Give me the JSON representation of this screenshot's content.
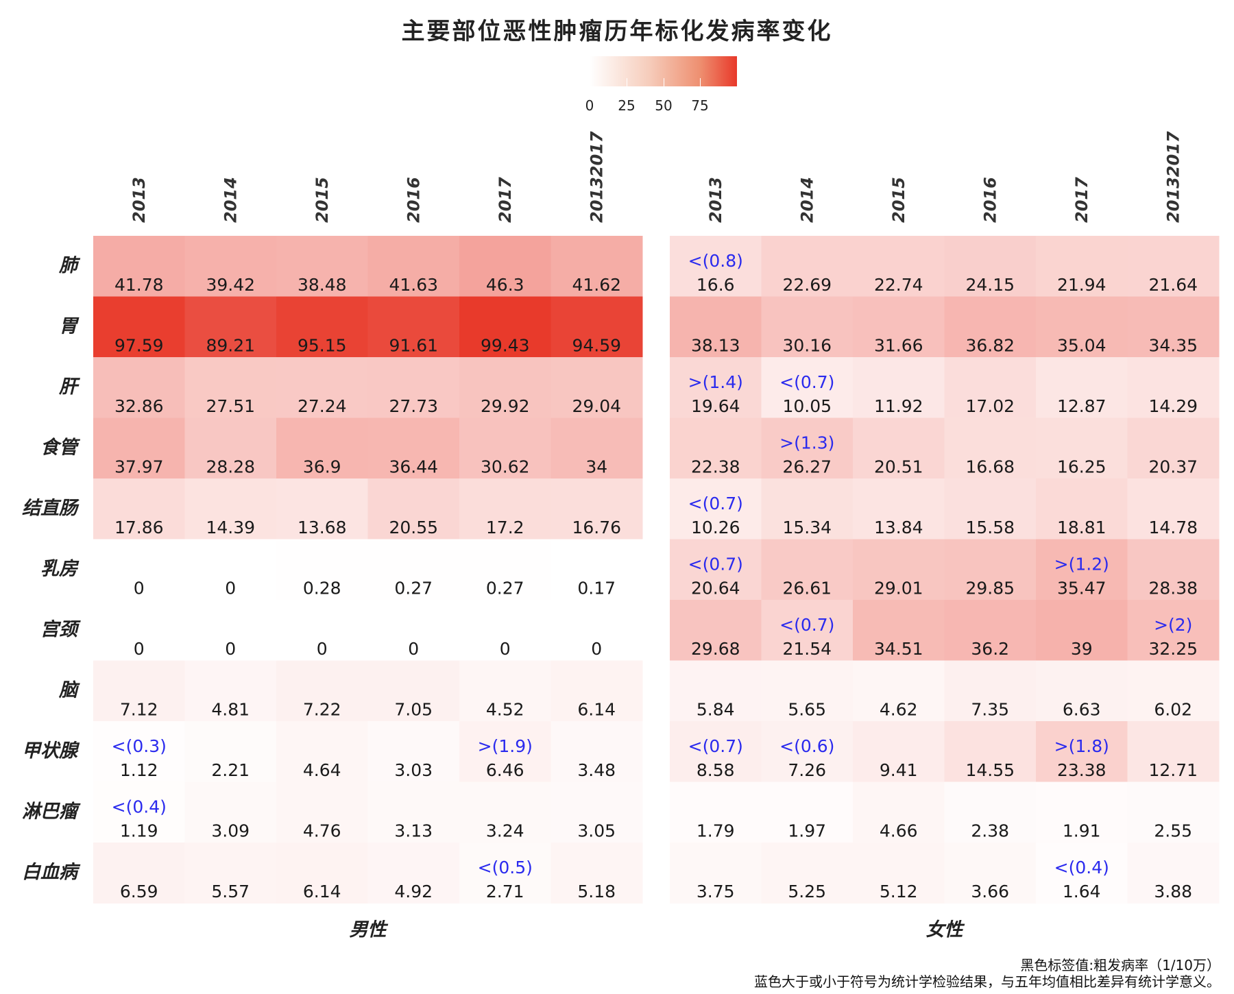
{
  "chart_data": {
    "type": "heatmap",
    "title": "主要部位恶性肿瘤历年标化发病率变化",
    "legend": {
      "ticks": [
        "0",
        "25",
        "50",
        "75"
      ],
      "range": [
        0,
        100
      ],
      "low_color": "#ffffff",
      "high_color": "#e8392a"
    },
    "columns": [
      "2013",
      "2014",
      "2015",
      "2016",
      "2017",
      "20132017"
    ],
    "rows": [
      "肺",
      "胃",
      "肝",
      "食管",
      "结直肠",
      "乳房",
      "宫颈",
      "脑",
      "甲状腺",
      "淋巴瘤",
      "白血病"
    ],
    "panels": [
      {
        "name": "男性",
        "values": [
          [
            "41.78",
            "39.42",
            "38.48",
            "41.63",
            "46.3",
            "41.62"
          ],
          [
            "97.59",
            "89.21",
            "95.15",
            "91.61",
            "99.43",
            "94.59"
          ],
          [
            "32.86",
            "27.51",
            "27.24",
            "27.73",
            "29.92",
            "29.04"
          ],
          [
            "37.97",
            "28.28",
            "36.9",
            "36.44",
            "30.62",
            "34"
          ],
          [
            "17.86",
            "14.39",
            "13.68",
            "20.55",
            "17.2",
            "16.76"
          ],
          [
            "0",
            "0",
            "0.28",
            "0.27",
            "0.27",
            "0.17"
          ],
          [
            "0",
            "0",
            "0",
            "0",
            "0",
            "0"
          ],
          [
            "7.12",
            "4.81",
            "7.22",
            "7.05",
            "4.52",
            "6.14"
          ],
          [
            "1.12",
            "2.21",
            "4.64",
            "3.03",
            "6.46",
            "3.48"
          ],
          [
            "1.19",
            "3.09",
            "4.76",
            "3.13",
            "3.24",
            "3.05"
          ],
          [
            "6.59",
            "5.57",
            "6.14",
            "4.92",
            "2.71",
            "5.18"
          ]
        ],
        "tests": [
          [
            "",
            "",
            "",
            "",
            "",
            ""
          ],
          [
            "",
            "",
            "",
            "",
            "",
            ""
          ],
          [
            "",
            "",
            "",
            "",
            "",
            ""
          ],
          [
            "",
            "",
            "",
            "",
            "",
            ""
          ],
          [
            "",
            "",
            "",
            "",
            "",
            ""
          ],
          [
            "",
            "",
            "",
            "",
            "",
            ""
          ],
          [
            "",
            "",
            "",
            "",
            "",
            ""
          ],
          [
            "",
            "",
            "",
            "",
            "",
            ""
          ],
          [
            "<(0.3)",
            "",
            "",
            "",
            ">(1.9)",
            ""
          ],
          [
            "<(0.4)",
            "",
            "",
            "",
            "",
            ""
          ],
          [
            "",
            "",
            "",
            "",
            "<(0.5)",
            ""
          ]
        ]
      },
      {
        "name": "女性",
        "values": [
          [
            "16.6",
            "22.69",
            "22.74",
            "24.15",
            "21.94",
            "21.64"
          ],
          [
            "38.13",
            "30.16",
            "31.66",
            "36.82",
            "35.04",
            "34.35"
          ],
          [
            "19.64",
            "10.05",
            "11.92",
            "17.02",
            "12.87",
            "14.29"
          ],
          [
            "22.38",
            "26.27",
            "20.51",
            "16.68",
            "16.25",
            "20.37"
          ],
          [
            "10.26",
            "15.34",
            "13.84",
            "15.58",
            "18.81",
            "14.78"
          ],
          [
            "20.64",
            "26.61",
            "29.01",
            "29.85",
            "35.47",
            "28.38"
          ],
          [
            "29.68",
            "21.54",
            "34.51",
            "36.2",
            "39",
            "32.25"
          ],
          [
            "5.84",
            "5.65",
            "4.62",
            "7.35",
            "6.63",
            "6.02"
          ],
          [
            "8.58",
            "7.26",
            "9.41",
            "14.55",
            "23.38",
            "12.71"
          ],
          [
            "1.79",
            "1.97",
            "4.66",
            "2.38",
            "1.91",
            "2.55"
          ],
          [
            "3.75",
            "5.25",
            "5.12",
            "3.66",
            "1.64",
            "3.88"
          ]
        ],
        "tests": [
          [
            "<(0.8)",
            "",
            "",
            "",
            "",
            ""
          ],
          [
            "",
            "",
            "",
            "",
            "",
            ""
          ],
          [
            ">(1.4)",
            "<(0.7)",
            "",
            "",
            "",
            ""
          ],
          [
            "",
            ">(1.3)",
            "",
            "",
            "",
            ""
          ],
          [
            "<(0.7)",
            "",
            "",
            "",
            "",
            ""
          ],
          [
            "<(0.7)",
            "",
            "",
            "",
            ">(1.2)",
            ""
          ],
          [
            "",
            "<(0.7)",
            "",
            "",
            "",
            ">(2)"
          ],
          [
            "",
            "",
            "",
            "",
            "",
            ""
          ],
          [
            "<(0.7)",
            "<(0.6)",
            "",
            "",
            ">(1.8)",
            ""
          ],
          [
            "",
            "",
            "",
            "",
            "",
            ""
          ],
          [
            "",
            "",
            "",
            "",
            "<(0.4)",
            ""
          ]
        ]
      }
    ],
    "value_label_color": "#1a1a1a",
    "test_label_color": "#2a2aee"
  },
  "footnote": {
    "line1": "黑色标签值:粗发病率（1/10万）",
    "line2": "蓝色大于或小于符号为统计学检验结果，与五年均值相比差异有统计学意义。"
  }
}
